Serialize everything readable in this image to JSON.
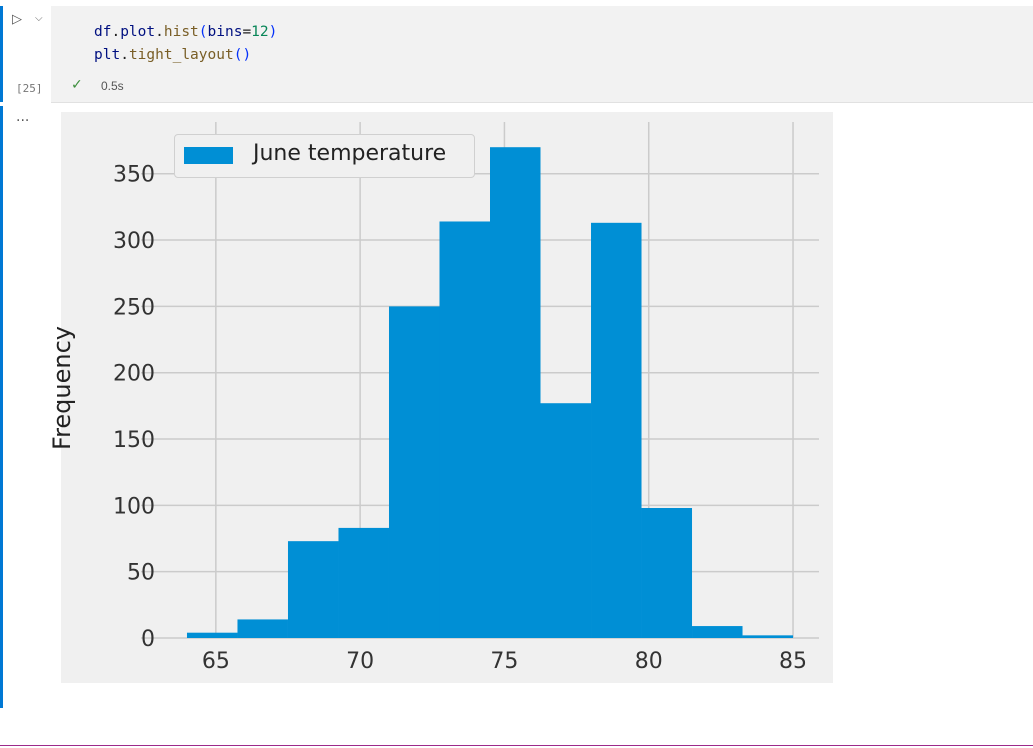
{
  "cell": {
    "run_icon": "▷",
    "chevron_icon": "⌵",
    "exec_count": "[25]",
    "status_icon": "✓",
    "status_time": "0.5s",
    "code": {
      "line1": {
        "a": "df",
        "b": ".",
        "c": "plot",
        "d": ".",
        "e": "hist",
        "f": "(",
        "g": "bins",
        "h": "=",
        "i": "12",
        "j": ")"
      },
      "line2": {
        "a": "plt",
        "b": ".",
        "c": "tight_layout",
        "d": "(",
        "e": ")"
      }
    }
  },
  "output": {
    "ellipsis": "..."
  },
  "chart_data": {
    "type": "bar",
    "title": "",
    "xlabel": "",
    "ylabel": "Frequency",
    "legend": {
      "label": "June temperature",
      "position": "top-left"
    },
    "bin_edges": [
      64,
      65.75,
      67.5,
      69.25,
      71,
      72.75,
      74.5,
      76.25,
      78,
      79.75,
      81.5,
      83.25,
      85
    ],
    "values": [
      4,
      14,
      73,
      83,
      250,
      314,
      370,
      177,
      313,
      98,
      9,
      2
    ],
    "xlim": [
      63.1,
      85.9
    ],
    "ylim": [
      0,
      389
    ],
    "xticks": [
      65,
      70,
      75,
      80,
      85
    ],
    "yticks": [
      0,
      50,
      100,
      150,
      200,
      250,
      300,
      350
    ],
    "grid": true,
    "bar_color": "#008fd5",
    "background_color": "#f0f0f0",
    "grid_color": "#cbcbcb"
  }
}
